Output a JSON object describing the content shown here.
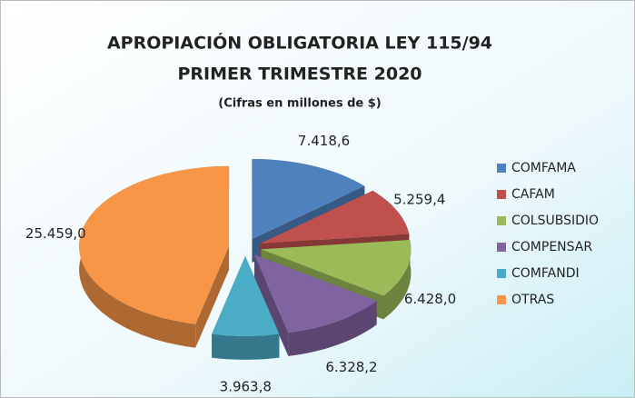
{
  "chart_data": {
    "type": "pie",
    "title": [
      "APROPIACIÓN OBLIGATORIA LEY 115/94",
      "PRIMER TRIMESTRE 2020"
    ],
    "subtitle": "(Cifras en millones de $)",
    "categories": [
      "COMFAMA",
      "CAFAM",
      "COLSUBSIDIO",
      "COMPENSAR",
      "COMFANDI",
      "OTRAS"
    ],
    "values": [
      7418.6,
      5259.4,
      6428.0,
      6328.2,
      3963.8,
      25459.0
    ],
    "value_labels": [
      "7.418,6",
      "5.259,4",
      "6.428,0",
      "6.328,2",
      "3.963,8",
      "25.459,0"
    ],
    "colors": [
      "#4f81bd",
      "#c0504d",
      "#9bbb59",
      "#8064a2",
      "#4bacc6",
      "#f79646"
    ],
    "legend": "right"
  }
}
